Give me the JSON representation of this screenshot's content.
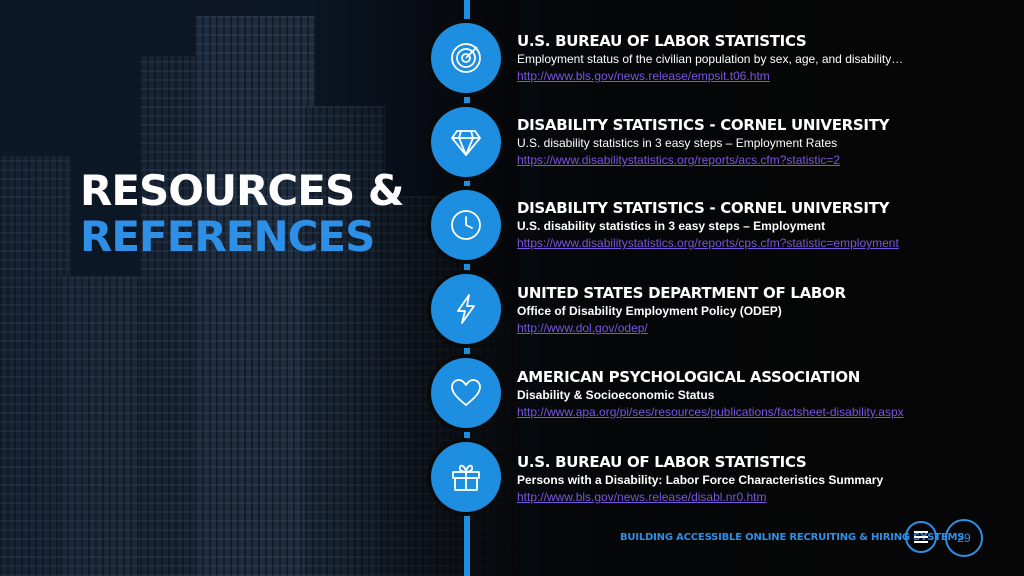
{
  "slide": {
    "title_line1": "RESOURCES &",
    "title_line2": "REFERENCES",
    "accent_color": "#1e8ee0",
    "link_color": "#7a55e0"
  },
  "items": [
    {
      "icon": "target-icon",
      "heading": "U.S. Bureau of Labor Statistics",
      "description": "Employment status of the civilian population by sex, age, and disability…",
      "link": "http://www.bls.gov/news.release/empsit.t06.htm"
    },
    {
      "icon": "diamond-icon",
      "heading": "Disability Statistics - Cornel University",
      "description": "U.S. disability statistics in 3 easy steps – Employment Rates",
      "link": "https://www.disabilitystatistics.org/reports/acs.cfm?statistic=2"
    },
    {
      "icon": "clock-icon",
      "heading": "Disability Statistics - Cornel University",
      "description": "U.S. disability statistics in 3 easy steps – Employment",
      "link": "https://www.disabilitystatistics.org/reports/cps.cfm?statistic=employment"
    },
    {
      "icon": "lightning-icon",
      "heading": "United States Department of Labor",
      "description": "Office of Disability Employment Policy (ODEP)",
      "link": "http://www.dol.gov/odep/"
    },
    {
      "icon": "heart-icon",
      "heading": "American Psychological Association",
      "description": "Disability & Socioeconomic Status",
      "link": "http://www.apa.org/pi/ses/resources/publications/factsheet-disability.aspx"
    },
    {
      "icon": "gift-icon",
      "heading": "U.S. Bureau of Labor Statistics",
      "description": "Persons with a Disability: Labor Force Characteristics Summary",
      "link": "http://www.bls.gov/news.release/disabl.nr0.htm"
    }
  ],
  "footer": {
    "text": "Building Accessible Online Recruiting & Hiring Systems",
    "menu_icon": "menu-icon",
    "page_number": "29"
  }
}
